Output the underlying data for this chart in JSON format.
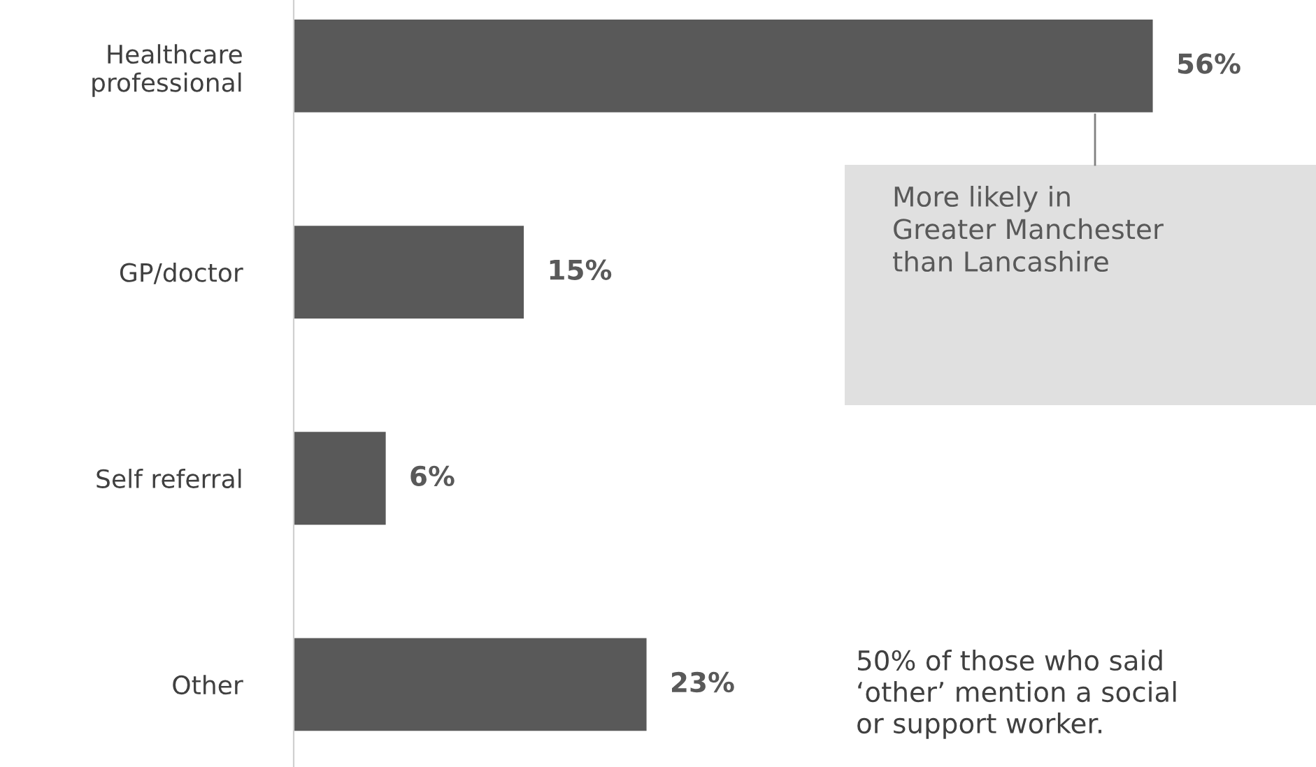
{
  "chart_data": {
    "type": "bar",
    "orientation": "horizontal",
    "categories": [
      "Healthcare\nprofessional",
      "GP/doctor",
      "Self referral",
      "Other"
    ],
    "values": [
      56,
      15,
      6,
      23
    ],
    "value_labels": [
      "56%",
      "15%",
      "6%",
      "23%"
    ],
    "color": "#595959",
    "tick_labels": "y",
    "grid": false,
    "annotations": [
      "More likely in\nGreater Manchester\nthan Lancashire",
      "50% of those who said\n‘other’ mention a social\nor support worker."
    ]
  }
}
